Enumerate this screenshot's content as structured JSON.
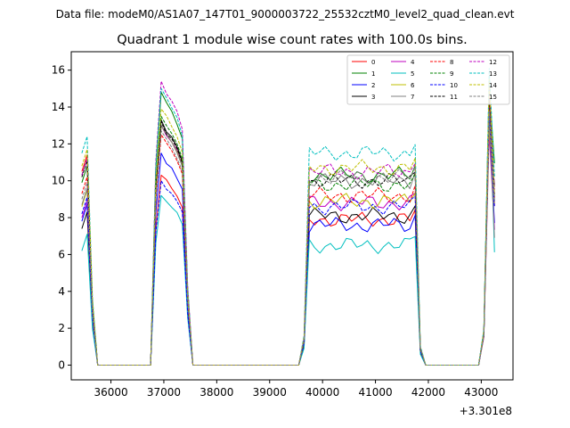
{
  "figure": {
    "suptitle": "Data file: modeM0/AS1A07_147T01_9000003722_25532cztM0_level2_quad_clean.evt",
    "offset_label": "+3.301e8"
  },
  "chart_data": {
    "type": "line",
    "title": "Quadrant 1 module wise count rates with 100.0s bins.",
    "xlabel": "",
    "ylabel": "",
    "x_offset": 330100000,
    "xlim": [
      35250,
      43600
    ],
    "ylim": [
      -0.8,
      17
    ],
    "x_ticks": [
      36000,
      37000,
      38000,
      39000,
      40000,
      41000,
      42000,
      43000
    ],
    "y_ticks": [
      0,
      2,
      4,
      6,
      8,
      10,
      12,
      14,
      16
    ],
    "grid": false,
    "legend_position": "top-right",
    "legend_columns": 4,
    "segments": [
      {
        "x": [
          35450,
          35550,
          35650,
          35750
        ]
      },
      {
        "x": [
          36750,
          36850,
          36950,
          37050,
          37150,
          37250,
          37350,
          37450,
          37550
        ]
      },
      {
        "x": [
          39550,
          39650,
          39750,
          39850,
          39950,
          40050,
          40150,
          40250,
          40350,
          40450,
          40550,
          40650,
          40750,
          40850,
          40950,
          41050,
          41150,
          41250,
          41350,
          41450,
          41550,
          41650,
          41750,
          41850,
          41950
        ]
      },
      {
        "x": [
          42950,
          43050,
          43150,
          43250
        ]
      }
    ],
    "series": [
      {
        "name": "0",
        "color": "#ff0000",
        "dash": "solid",
        "level": 7.9,
        "peak": 10.3,
        "start": 10.5,
        "end": 12.6,
        "spike": 14.3
      },
      {
        "name": "1",
        "color": "#008000",
        "dash": "solid",
        "level": 10.3,
        "peak": 14.8,
        "start": 9.9,
        "end": 15.2,
        "spike": 15.0
      },
      {
        "name": "2",
        "color": "#0000ff",
        "dash": "solid",
        "level": 7.6,
        "peak": 11.5,
        "start": 7.8,
        "end": 10.7,
        "spike": 13.3
      },
      {
        "name": "3",
        "color": "#000000",
        "dash": "solid",
        "level": 8.1,
        "peak": 13.3,
        "start": 7.4,
        "end": 13.5,
        "spike": 13.4
      },
      {
        "name": "4",
        "color": "#bf00bf",
        "dash": "solid",
        "level": 8.8,
        "peak": 13.0,
        "start": 8.0,
        "end": 10.2,
        "spike": 12.6
      },
      {
        "name": "5",
        "color": "#00bfbf",
        "dash": "solid",
        "level": 6.5,
        "peak": 9.2,
        "start": 6.2,
        "end": 8.5,
        "spike": 15.6
      },
      {
        "name": "6",
        "color": "#bfbf00",
        "dash": "solid",
        "level": 8.9,
        "peak": 13.0,
        "start": 8.6,
        "end": 12.2,
        "spike": 13.0
      },
      {
        "name": "7",
        "color": "#808080",
        "dash": "solid",
        "level": 10.0,
        "peak": 13.0,
        "start": 8.7,
        "end": 9.6,
        "spike": 13.8
      },
      {
        "name": "8",
        "color": "#ff0000",
        "dash": "dashed",
        "level": 9.2,
        "peak": 12.5,
        "start": 9.3,
        "end": 12.0,
        "spike": 15.1
      },
      {
        "name": "9",
        "color": "#008000",
        "dash": "dashed",
        "level": 9.8,
        "peak": 13.5,
        "start": 10.3,
        "end": 12.4,
        "spike": 15.3
      },
      {
        "name": "10",
        "color": "#0000ff",
        "dash": "dashed",
        "level": 8.6,
        "peak": 10.0,
        "start": 8.2,
        "end": 11.9,
        "spike": 13.8
      },
      {
        "name": "11",
        "color": "#000000",
        "dash": "dashed",
        "level": 10.0,
        "peak": 13.2,
        "start": 10.2,
        "end": 12.9,
        "spike": 14.8
      },
      {
        "name": "12",
        "color": "#bf00bf",
        "dash": "dashed",
        "level": 10.5,
        "peak": 15.4,
        "start": 10.3,
        "end": 13.2,
        "spike": 15.3
      },
      {
        "name": "13",
        "color": "#00bfbf",
        "dash": "dashed",
        "level": 11.5,
        "peak": 15.0,
        "start": 11.5,
        "end": 14.2,
        "spike": 16.1
      },
      {
        "name": "14",
        "color": "#bfbf00",
        "dash": "dashed",
        "level": 10.7,
        "peak": 13.9,
        "start": 10.8,
        "end": 12.9,
        "spike": 15.5
      },
      {
        "name": "15",
        "color": "#808080",
        "dash": "dashed",
        "level": 10.2,
        "peak": 12.7,
        "start": 9.0,
        "end": 12.3,
        "spike": 13.8
      }
    ]
  }
}
